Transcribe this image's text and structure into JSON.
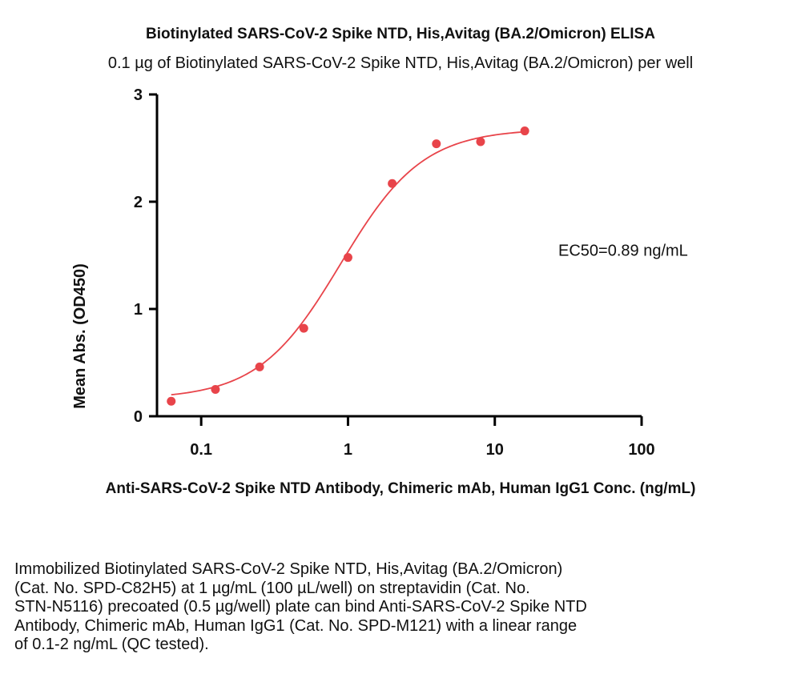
{
  "chart_data": {
    "type": "scatter",
    "title": "Biotinylated SARS-CoV-2 Spike NTD, His,Avitag (BA.2/Omicron) ELISA",
    "subtitle": "0.1 µg of Biotinylated SARS-CoV-2 Spike NTD, His,Avitag (BA.2/Omicron) per well",
    "xlabel": "Anti-SARS-CoV-2 Spike NTD Antibody, Chimeric mAb, Human IgG1 Conc. (ng/mL)",
    "ylabel": "Mean Abs. (OD450)",
    "xscale": "log",
    "xlim": [
      0.05,
      100
    ],
    "ylim": [
      0,
      3
    ],
    "xticks": [
      0.1,
      1,
      10,
      100
    ],
    "xtick_labels": [
      "0.1",
      "1",
      "10",
      "100"
    ],
    "yticks": [
      0,
      1,
      2,
      3
    ],
    "ytick_labels": [
      "0",
      "1",
      "2",
      "3"
    ],
    "series": [
      {
        "color": "#e8444a",
        "x": [
          0.0625,
          0.125,
          0.25,
          0.5,
          1,
          2,
          4,
          8,
          16
        ],
        "y": [
          0.14,
          0.25,
          0.46,
          0.82,
          1.48,
          2.17,
          2.54,
          2.56,
          2.66
        ],
        "fit": "four-parameter logistic"
      }
    ],
    "annotations": [
      {
        "text": "EC50=0.89 ng/mL",
        "x": 15,
        "y": 1.55
      }
    ],
    "grid": false,
    "legend": "none"
  },
  "caption_lines": [
    "Immobilized Biotinylated SARS-CoV-2 Spike NTD, His,Avitag (BA.2/Omicron)",
    "(Cat. No. SPD-C82H5) at 1 µg/mL (100 µL/well) on streptavidin (Cat. No.",
    "STN-N5116) precoated (0.5 µg/well) plate can bind Anti-SARS-CoV-2 Spike NTD",
    "Antibody, Chimeric mAb, Human IgG1 (Cat. No. SPD-M121) with a linear range",
    "of 0.1-2 ng/mL (QC tested)."
  ]
}
